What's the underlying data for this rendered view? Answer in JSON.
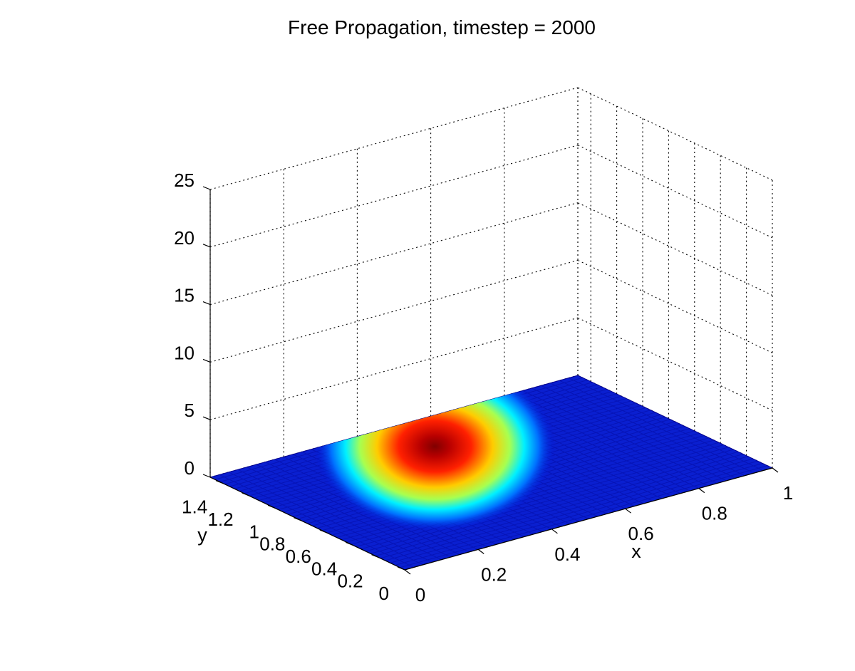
{
  "chart_data": {
    "type": "surface",
    "title": "Free Propagation, timestep = 2000",
    "xlabel": "x",
    "ylabel": "y",
    "zlabel": "",
    "xlim": [
      0,
      1
    ],
    "ylim": [
      0,
      1.5
    ],
    "zlim": [
      0,
      25
    ],
    "xticks": [
      0,
      0.2,
      0.4,
      0.6,
      0.8,
      1
    ],
    "xtick_labels": [
      "0",
      "0.2",
      "0.4",
      "0.6",
      "0.8",
      "1"
    ],
    "yticks": [
      0,
      0.2,
      0.4,
      0.6,
      0.8,
      1,
      1.2,
      1.4
    ],
    "ytick_labels": [
      "0",
      "0.2",
      "0.4",
      "0.6",
      "0.8",
      "1",
      "1.2",
      "1.4"
    ],
    "zticks": [
      0,
      5,
      10,
      15,
      20,
      25
    ],
    "ztick_labels": [
      "0",
      "5",
      "10",
      "15",
      "20",
      "25"
    ],
    "grid": true,
    "colormap": "jet",
    "colormap_colors": [
      "#00008f",
      "#0000ff",
      "#00ffff",
      "#ffff00",
      "#ff0000",
      "#800000"
    ],
    "surface": {
      "shape": "gaussian",
      "center_x": 0.42,
      "center_y": 0.98,
      "peak_z": 5,
      "sigma_x": 0.22,
      "sigma_y": 0.34,
      "baseline_z": 0
    }
  }
}
